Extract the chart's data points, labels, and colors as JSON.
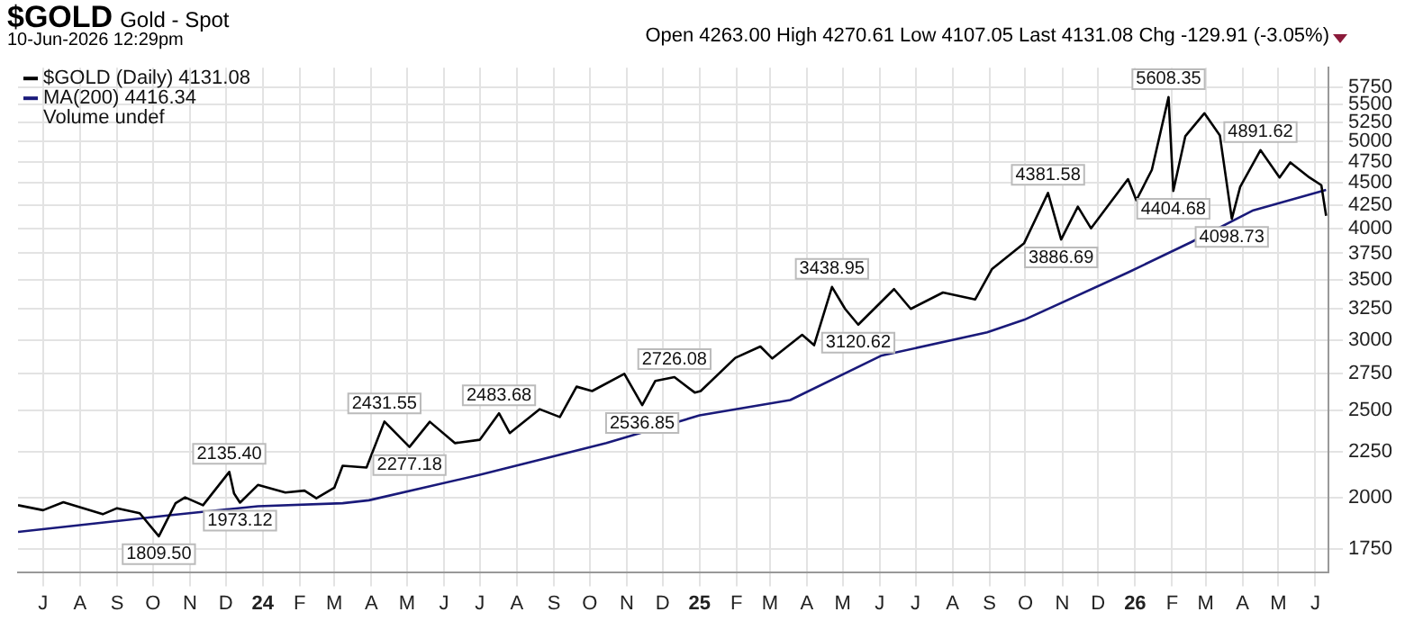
{
  "chart_data": {
    "type": "line",
    "title": "$GOLD",
    "subtitle": "Gold - Spot",
    "annotations": [
      "10-Jun-2026 12:29pm",
      "Open 4263.00 High 4270.61 Low 4107.05 Last 4131.08 Chg -129.91 (-3.05%)",
      "Volume undef",
      {
        "text": "1809.50",
        "x": "2023-10-06",
        "y": 1809.5
      },
      {
        "text": "2135.40",
        "x": "2023-12-04",
        "y": 2135.4
      },
      {
        "text": "1973.12",
        "x": "2023-12-13",
        "y": 1973.12
      },
      {
        "text": "2431.55",
        "x": "2024-04-12",
        "y": 2431.55
      },
      {
        "text": "2277.18",
        "x": "2024-05-03",
        "y": 2277.18
      },
      {
        "text": "2483.68",
        "x": "2024-07-17",
        "y": 2483.68
      },
      {
        "text": "2536.85",
        "x": "2024-11-14",
        "y": 2536.85
      },
      {
        "text": "2726.08",
        "x": "2024-12-11",
        "y": 2726.08
      },
      {
        "text": "3438.95",
        "x": "2025-04-22",
        "y": 3438.95
      },
      {
        "text": "3120.62",
        "x": "2025-05-14",
        "y": 3120.62
      },
      {
        "text": "4381.58",
        "x": "2025-10-20",
        "y": 4381.58
      },
      {
        "text": "3886.69",
        "x": "2025-10-31",
        "y": 3886.69
      },
      {
        "text": "5608.35",
        "x": "2026-01-29",
        "y": 5608.35
      },
      {
        "text": "4404.68",
        "x": "2026-02-02",
        "y": 4404.68
      },
      {
        "text": "4098.73",
        "x": "2026-03-23",
        "y": 4098.73
      },
      {
        "text": "4891.62",
        "x": "2026-04-16",
        "y": 4891.62
      }
    ],
    "series": [
      {
        "name": "$GOLD (Daily) 4131.08",
        "color": "#000000",
        "x": [
          "2023-06-10",
          "2023-07-01",
          "2023-07-18",
          "2023-08-20",
          "2023-09-01",
          "2023-09-20",
          "2023-10-06",
          "2023-10-20",
          "2023-10-28",
          "2023-11-12",
          "2023-12-04",
          "2023-12-08",
          "2023-12-13",
          "2023-12-28",
          "2024-01-20",
          "2024-02-05",
          "2024-02-15",
          "2024-03-01",
          "2024-03-08",
          "2024-03-28",
          "2024-04-12",
          "2024-05-03",
          "2024-05-20",
          "2024-06-10",
          "2024-07-01",
          "2024-07-17",
          "2024-07-26",
          "2024-08-20",
          "2024-09-06",
          "2024-09-20",
          "2024-10-03",
          "2024-10-30",
          "2024-11-14",
          "2024-11-25",
          "2024-12-11",
          "2024-12-28",
          "2025-01-02",
          "2025-01-31",
          "2025-02-21",
          "2025-03-03",
          "2025-03-28",
          "2025-04-07",
          "2025-04-22",
          "2025-05-03",
          "2025-05-14",
          "2025-06-13",
          "2025-06-27",
          "2025-07-24",
          "2025-08-20",
          "2025-09-03",
          "2025-09-30",
          "2025-10-20",
          "2025-10-31",
          "2025-11-14",
          "2025-11-25",
          "2025-12-26",
          "2026-01-02",
          "2026-01-15",
          "2026-01-29",
          "2026-02-02",
          "2026-02-12",
          "2026-02-28",
          "2026-03-13",
          "2026-03-23",
          "2026-03-30",
          "2026-04-16",
          "2026-05-02",
          "2026-05-11",
          "2026-05-27",
          "2026-06-06",
          "2026-06-10"
        ],
        "values": [
          1960,
          1935,
          1975,
          1915,
          1945,
          1920,
          1809.5,
          1970,
          2000,
          1960,
          2135.4,
          2020,
          1973.12,
          2065,
          2025,
          2035,
          1995,
          2050,
          2170,
          2160,
          2431.55,
          2277.18,
          2430,
          2300,
          2320,
          2483.68,
          2360,
          2510,
          2460,
          2660,
          2630,
          2750,
          2536.85,
          2700,
          2726.08,
          2620,
          2630,
          2865,
          2950,
          2860,
          3040,
          2960,
          3438.95,
          3250,
          3120.62,
          3420,
          3250,
          3390,
          3330,
          3600,
          3850,
          4381.58,
          3886.69,
          4230,
          4000,
          4540,
          4300,
          4650,
          5608.35,
          4404.68,
          5070,
          5380,
          5080,
          4098.73,
          4450,
          4891.62,
          4560,
          4740,
          4560,
          4470,
          4131.08
        ]
      },
      {
        "name": "MA(200) 4416.34",
        "color": "#1a1a7a",
        "x": [
          "2023-06-10",
          "2023-10-15",
          "2023-12-28",
          "2024-03-08",
          "2024-03-30",
          "2024-07-01",
          "2024-10-15",
          "2025-01-01",
          "2025-03-18",
          "2025-06-02",
          "2025-08-30",
          "2025-09-30",
          "2025-12-26",
          "2026-02-17",
          "2026-04-10",
          "2026-06-10"
        ],
        "values": [
          1830,
          1910,
          1955,
          1970,
          1985,
          2120,
          2300,
          2470,
          2570,
          2880,
          3060,
          3160,
          3570,
          3860,
          4190,
          4416.34
        ]
      }
    ],
    "xlim": [
      "2023-06-10",
      "2026-06-12"
    ],
    "xticks": [
      {
        "value": "2023-07-01",
        "label": "J"
      },
      {
        "value": "2023-08-01",
        "label": "A"
      },
      {
        "value": "2023-09-01",
        "label": "S"
      },
      {
        "value": "2023-10-01",
        "label": "O"
      },
      {
        "value": "2023-11-01",
        "label": "N"
      },
      {
        "value": "2023-12-01",
        "label": "D"
      },
      {
        "value": "2024-01-01",
        "label": "24"
      },
      {
        "value": "2024-02-01",
        "label": "F"
      },
      {
        "value": "2024-03-01",
        "label": "M"
      },
      {
        "value": "2024-04-01",
        "label": "A"
      },
      {
        "value": "2024-05-01",
        "label": "M"
      },
      {
        "value": "2024-06-01",
        "label": "J"
      },
      {
        "value": "2024-07-01",
        "label": "J"
      },
      {
        "value": "2024-08-01",
        "label": "A"
      },
      {
        "value": "2024-09-01",
        "label": "S"
      },
      {
        "value": "2024-10-01",
        "label": "O"
      },
      {
        "value": "2024-11-01",
        "label": "N"
      },
      {
        "value": "2024-12-01",
        "label": "D"
      },
      {
        "value": "2025-01-01",
        "label": "25"
      },
      {
        "value": "2025-02-01",
        "label": "F"
      },
      {
        "value": "2025-03-01",
        "label": "M"
      },
      {
        "value": "2025-04-01",
        "label": "A"
      },
      {
        "value": "2025-05-01",
        "label": "M"
      },
      {
        "value": "2025-06-01",
        "label": "J"
      },
      {
        "value": "2025-07-01",
        "label": "J"
      },
      {
        "value": "2025-08-01",
        "label": "A"
      },
      {
        "value": "2025-09-01",
        "label": "S"
      },
      {
        "value": "2025-10-01",
        "label": "O"
      },
      {
        "value": "2025-11-01",
        "label": "N"
      },
      {
        "value": "2025-12-01",
        "label": "D"
      },
      {
        "value": "2026-01-01",
        "label": "26"
      },
      {
        "value": "2026-02-01",
        "label": "F"
      },
      {
        "value": "2026-03-01",
        "label": "M"
      },
      {
        "value": "2026-04-01",
        "label": "A"
      },
      {
        "value": "2026-05-01",
        "label": "M"
      },
      {
        "value": "2026-06-01",
        "label": "J"
      }
    ],
    "ylim": [
      1650,
      6050
    ],
    "yticks": [
      1750,
      2000,
      2250,
      2500,
      2750,
      3000,
      3250,
      3500,
      3750,
      4000,
      4250,
      4500,
      4750,
      5000,
      5250,
      5500,
      5750
    ],
    "log": true,
    "grid": true,
    "legend": "top left",
    "line_style": "solid",
    "marker": "none"
  }
}
